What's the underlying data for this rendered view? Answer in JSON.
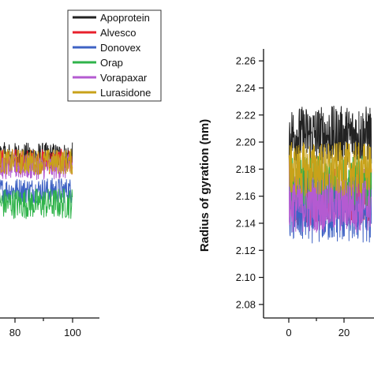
{
  "chart_data": [
    {
      "type": "line",
      "title": "",
      "xlabel": "",
      "ylabel": "",
      "x_ticks": [
        "80",
        "100"
      ],
      "xlim_visible": [
        65,
        100
      ],
      "legend": {
        "placement": "top-right",
        "entries": [
          "Apoprotein",
          "Alvesco",
          "Donovex",
          "Orap",
          "Vorapaxar",
          "Lurasidone"
        ]
      },
      "series": [
        {
          "name": "Apoprotein",
          "color": "#222222",
          "mean": 0.62,
          "spread": 0.055
        },
        {
          "name": "Alvesco",
          "color": "#e8202c",
          "mean": 0.6,
          "spread": 0.05
        },
        {
          "name": "Donovex",
          "color": "#3f63c4",
          "mean": 0.49,
          "spread": 0.05
        },
        {
          "name": "Orap",
          "color": "#2fb34a",
          "mean": 0.44,
          "spread": 0.06
        },
        {
          "name": "Vorapaxar",
          "color": "#b45bd1",
          "mean": 0.58,
          "spread": 0.05
        },
        {
          "name": "Lurasidone",
          "color": "#c8a21a",
          "mean": 0.6,
          "spread": 0.05
        }
      ]
    },
    {
      "type": "line",
      "title": "",
      "xlabel": "",
      "ylabel": "Radius of gyration (nm)",
      "ylim": [
        2.07,
        2.27
      ],
      "y_ticks": [
        "2.08",
        "2.10",
        "2.12",
        "2.14",
        "2.16",
        "2.18",
        "2.20",
        "2.22",
        "2.24",
        "2.26"
      ],
      "xlim_visible": [
        0,
        30
      ],
      "x_ticks": [
        "0",
        "20"
      ],
      "series": [
        {
          "name": "Apoprotein",
          "color": "#222222",
          "mean": 2.205,
          "spread": 0.022
        },
        {
          "name": "Alvesco",
          "color": "#e8202c",
          "mean": 2.16,
          "spread": 0.022
        },
        {
          "name": "Donovex",
          "color": "#3f63c4",
          "mean": 2.15,
          "spread": 0.025
        },
        {
          "name": "Orap",
          "color": "#2fb34a",
          "mean": 2.17,
          "spread": 0.02
        },
        {
          "name": "Vorapaxar",
          "color": "#b45bd1",
          "mean": 2.155,
          "spread": 0.022
        },
        {
          "name": "Lurasidone",
          "color": "#c8a21a",
          "mean": 2.18,
          "spread": 0.02
        }
      ]
    }
  ]
}
